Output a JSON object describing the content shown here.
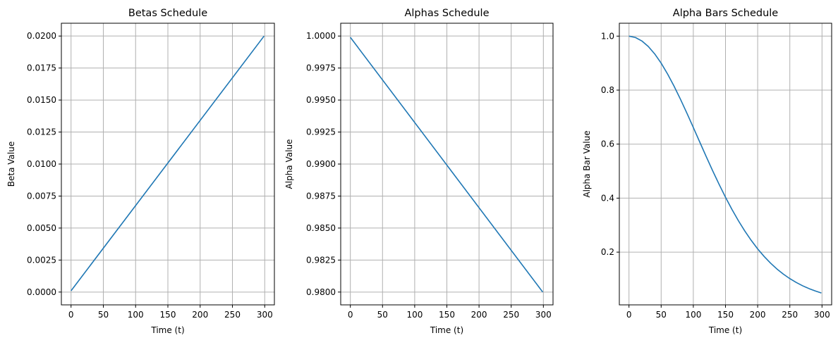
{
  "line_color": "#1f77b4",
  "grid_color": "#b0b0b0",
  "chart_data": [
    {
      "type": "line",
      "title": "Betas Schedule",
      "xlabel": "Time (t)",
      "ylabel": "Beta Value",
      "grid": true,
      "xlim": [
        -15,
        315
      ],
      "ylim": [
        -0.001,
        0.021
      ],
      "xticks": [
        0,
        50,
        100,
        150,
        200,
        250,
        300
      ],
      "xtick_labels": [
        "0",
        "50",
        "100",
        "150",
        "200",
        "250",
        "300"
      ],
      "yticks": [
        0.0,
        0.0025,
        0.005,
        0.0075,
        0.01,
        0.0125,
        0.015,
        0.0175,
        0.02
      ],
      "ytick_labels": [
        "0.0000",
        "0.0025",
        "0.0050",
        "0.0075",
        "0.0100",
        "0.0125",
        "0.0150",
        "0.0175",
        "0.0200"
      ],
      "series": [
        {
          "x": [
            0,
            299
          ],
          "y": [
            0.0001,
            0.02
          ]
        }
      ]
    },
    {
      "type": "line",
      "title": "Alphas Schedule",
      "xlabel": "Time (t)",
      "ylabel": "Alpha Value",
      "grid": true,
      "xlim": [
        -15,
        315
      ],
      "ylim": [
        0.979,
        1.001
      ],
      "xticks": [
        0,
        50,
        100,
        150,
        200,
        250,
        300
      ],
      "xtick_labels": [
        "0",
        "50",
        "100",
        "150",
        "200",
        "250",
        "300"
      ],
      "yticks": [
        0.98,
        0.9825,
        0.985,
        0.9875,
        0.99,
        0.9925,
        0.995,
        0.9975,
        1.0
      ],
      "ytick_labels": [
        "0.9800",
        "0.9825",
        "0.9850",
        "0.9875",
        "0.9900",
        "0.9925",
        "0.9950",
        "0.9975",
        "1.0000"
      ],
      "series": [
        {
          "x": [
            0,
            299
          ],
          "y": [
            0.9999,
            0.98
          ]
        }
      ]
    },
    {
      "type": "line",
      "title": "Alpha Bars Schedule",
      "xlabel": "Time (t)",
      "ylabel": "Alpha Bar Value",
      "grid": true,
      "xlim": [
        -15,
        315
      ],
      "ylim": [
        0.0047,
        1.0477
      ],
      "xticks": [
        0,
        50,
        100,
        150,
        200,
        250,
        300
      ],
      "xtick_labels": [
        "0",
        "50",
        "100",
        "150",
        "200",
        "250",
        "300"
      ],
      "yticks": [
        0.2,
        0.4,
        0.6,
        0.8,
        1.0
      ],
      "ytick_labels": [
        "0.2",
        "0.4",
        "0.6",
        "0.8",
        "1.0"
      ],
      "series": [
        {
          "x": [
            0,
            10,
            20,
            30,
            40,
            50,
            60,
            70,
            80,
            90,
            100,
            110,
            120,
            130,
            140,
            150,
            160,
            170,
            180,
            190,
            200,
            210,
            220,
            230,
            240,
            250,
            260,
            270,
            280,
            290,
            299
          ],
          "y": [
            0.9999,
            0.9949,
            0.9821,
            0.9617,
            0.934,
            0.8998,
            0.8597,
            0.8149,
            0.7662,
            0.7147,
            0.6615,
            0.6077,
            0.5541,
            0.5017,
            0.4513,
            0.4034,
            0.3584,
            0.3166,
            0.2783,
            0.2435,
            0.2121,
            0.1841,
            0.1593,
            0.1375,
            0.1185,
            0.1019,
            0.0876,
            0.0753,
            0.0648,
            0.0558,
            0.0487
          ]
        }
      ]
    }
  ]
}
